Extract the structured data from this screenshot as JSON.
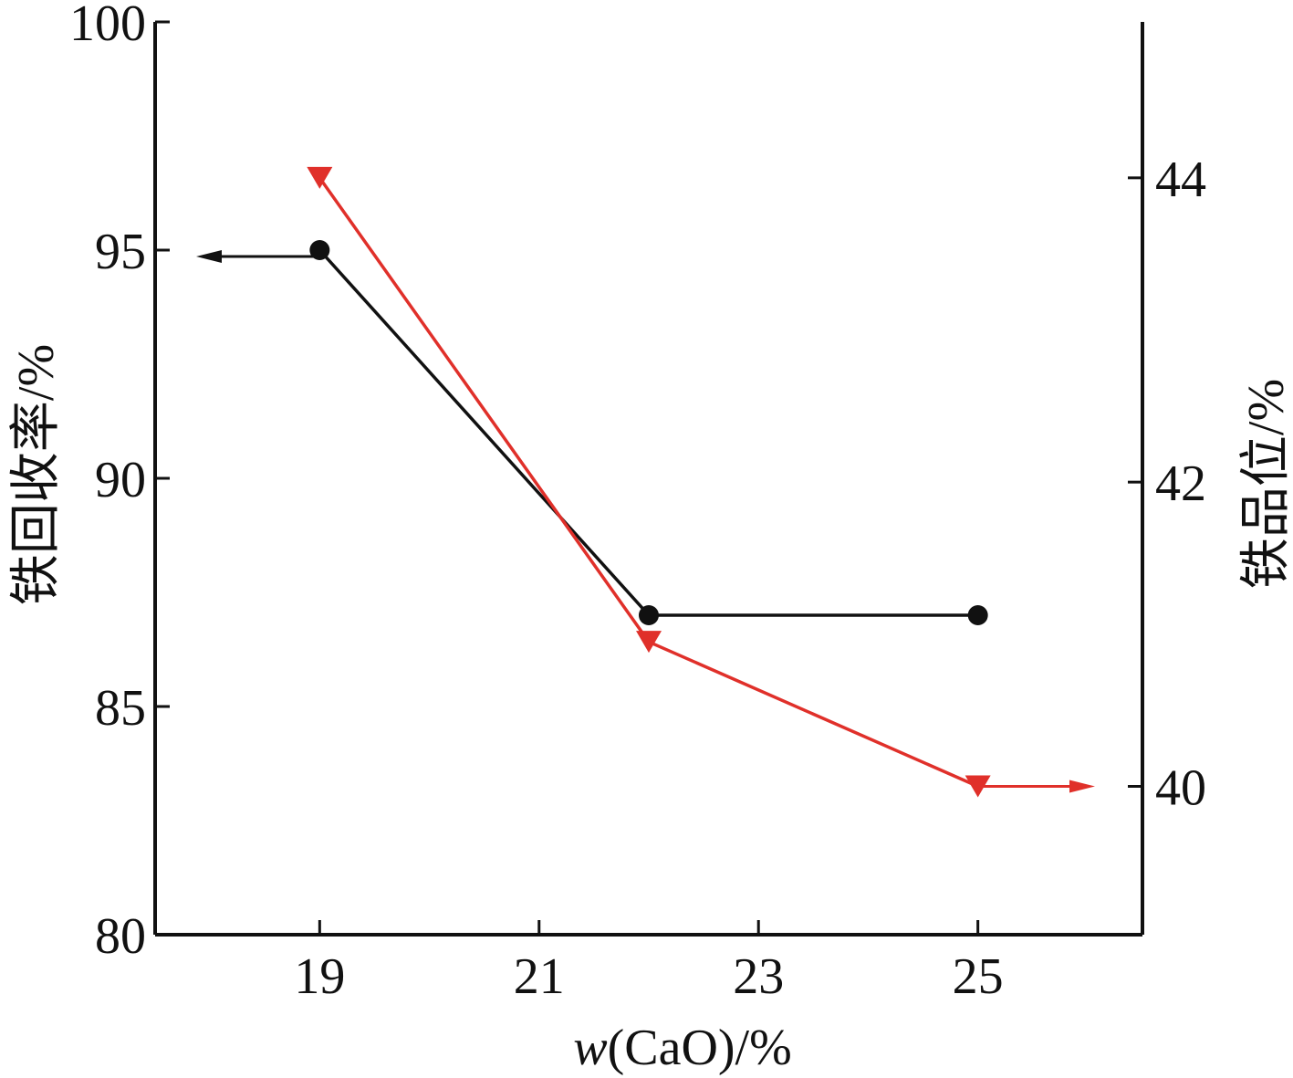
{
  "chart_data": {
    "type": "line",
    "xlabel_var": "w",
    "xlabel_rest": "(CaO)/%",
    "ylabel_left": "铁回收率/%",
    "ylabel_right": "铁品位/%",
    "x_ticks": [
      19,
      21,
      23,
      25
    ],
    "y_left_ticks": [
      80,
      85,
      90,
      95,
      100
    ],
    "y_right_ticks": [
      40,
      42,
      44
    ],
    "xlim": [
      17.5,
      26.5
    ],
    "ylim_left": [
      80,
      100
    ],
    "ylim_right": [
      39.025,
      45.025
    ],
    "series": [
      {
        "axis": "left",
        "marker": "circle",
        "color": "#111111",
        "x": [
          19,
          22,
          25
        ],
        "y": [
          95.0,
          87.0,
          87.0
        ]
      },
      {
        "axis": "right",
        "marker": "triangle-down",
        "color": "#e0302a",
        "x": [
          19,
          22,
          25
        ],
        "y": [
          44.0,
          40.95,
          40.0
        ]
      }
    ]
  }
}
